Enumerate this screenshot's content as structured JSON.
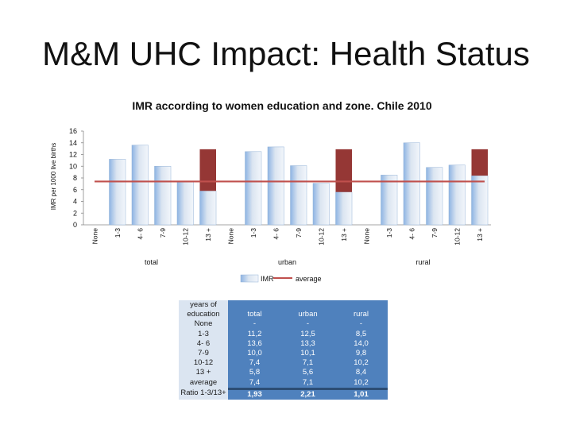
{
  "title": "M&M UHC Impact: Health Status",
  "chart_data": {
    "type": "bar",
    "title": "IMR according to women education and zone. Chile 2010",
    "ylabel": "IMR per 1000 live births",
    "ylim": [
      0,
      16
    ],
    "yticks": [
      0,
      2,
      4,
      6,
      8,
      10,
      12,
      14,
      16
    ],
    "groups": [
      "total",
      "urban",
      "rural"
    ],
    "categories": [
      "None",
      "1-3",
      "4- 6",
      "7-9",
      "10-12",
      "13 +"
    ],
    "series": [
      {
        "name": "IMR",
        "color": "#b8cce4",
        "highlight_color": "#953735",
        "values": {
          "total": [
            null,
            11.2,
            13.6,
            10.0,
            7.4,
            5.8
          ],
          "urban": [
            null,
            12.5,
            13.3,
            10.1,
            7.1,
            5.6
          ],
          "rural": [
            null,
            8.5,
            14.0,
            9.8,
            10.2,
            8.4
          ]
        },
        "highlight_values": {
          "total": 12.9,
          "urban": 12.9,
          "rural": 12.9
        }
      },
      {
        "name": "average",
        "type": "line",
        "color": "#c0504d",
        "value": 7.4
      }
    ],
    "legend": [
      "IMR",
      "average"
    ]
  },
  "table": {
    "header": [
      "years of education",
      "total",
      "urban",
      "rural"
    ],
    "rows": [
      [
        "None",
        "-",
        "-",
        "-"
      ],
      [
        "1-3",
        "11,2",
        "12,5",
        "8,5"
      ],
      [
        "4- 6",
        "13,6",
        "13,3",
        "14,0"
      ],
      [
        "7-9",
        "10,0",
        "10,1",
        "9,8"
      ],
      [
        "10-12",
        "7,4",
        "7,1",
        "10,2"
      ],
      [
        "13 +",
        "5,8",
        "5,6",
        "8,4"
      ],
      [
        "average",
        "7,4",
        "7,1",
        "10,2"
      ],
      [
        "Ratio 1-3/13+",
        "1,93",
        "2,21",
        "1,01"
      ]
    ]
  }
}
